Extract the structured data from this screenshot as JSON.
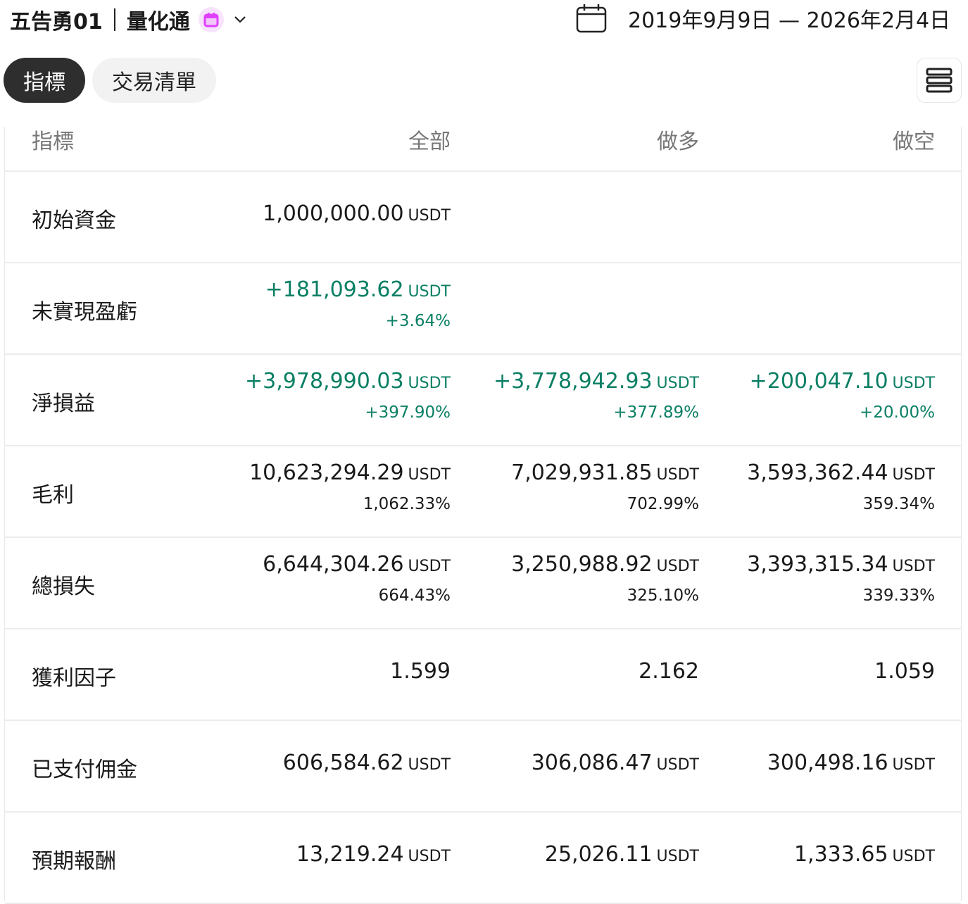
{
  "header": {
    "account": "五告勇01",
    "product": "量化通",
    "date_range": "2019年9月9日 — 2026年2月4日",
    "badge_icon": "calendar-icon",
    "badge_color": "#e040fb"
  },
  "tabs": [
    {
      "label": "指標",
      "active": true
    },
    {
      "label": "交易清單",
      "active": false
    }
  ],
  "table": {
    "columns": [
      "指標",
      "全部",
      "做多",
      "做空"
    ],
    "positive_color": "#0a7f64",
    "rows": [
      {
        "label": "初始資金",
        "cells": [
          {
            "value": "1,000,000.00",
            "unit": "USDT"
          },
          null,
          null
        ]
      },
      {
        "label": "未實現盈虧",
        "cells": [
          {
            "value": "+181,093.62",
            "unit": "USDT",
            "sub": "+3.64%",
            "positive": true
          },
          null,
          null
        ]
      },
      {
        "label": "淨損益",
        "cells": [
          {
            "value": "+3,978,990.03",
            "unit": "USDT",
            "sub": "+397.90%",
            "positive": true
          },
          {
            "value": "+3,778,942.93",
            "unit": "USDT",
            "sub": "+377.89%",
            "positive": true
          },
          {
            "value": "+200,047.10",
            "unit": "USDT",
            "sub": "+20.00%",
            "positive": true
          }
        ]
      },
      {
        "label": "毛利",
        "cells": [
          {
            "value": "10,623,294.29",
            "unit": "USDT",
            "sub": "1,062.33%"
          },
          {
            "value": "7,029,931.85",
            "unit": "USDT",
            "sub": "702.99%"
          },
          {
            "value": "3,593,362.44",
            "unit": "USDT",
            "sub": "359.34%"
          }
        ]
      },
      {
        "label": "總損失",
        "cells": [
          {
            "value": "6,644,304.26",
            "unit": "USDT",
            "sub": "664.43%"
          },
          {
            "value": "3,250,988.92",
            "unit": "USDT",
            "sub": "325.10%"
          },
          {
            "value": "3,393,315.34",
            "unit": "USDT",
            "sub": "339.33%"
          }
        ]
      },
      {
        "label": "獲利因子",
        "cells": [
          {
            "value": "1.599"
          },
          {
            "value": "2.162"
          },
          {
            "value": "1.059"
          }
        ]
      },
      {
        "label": "已支付佣金",
        "cells": [
          {
            "value": "606,584.62",
            "unit": "USDT"
          },
          {
            "value": "306,086.47",
            "unit": "USDT"
          },
          {
            "value": "300,498.16",
            "unit": "USDT"
          }
        ]
      },
      {
        "label": "預期報酬",
        "cells": [
          {
            "value": "13,219.24",
            "unit": "USDT"
          },
          {
            "value": "25,026.11",
            "unit": "USDT"
          },
          {
            "value": "1,333.65",
            "unit": "USDT"
          }
        ]
      }
    ]
  }
}
